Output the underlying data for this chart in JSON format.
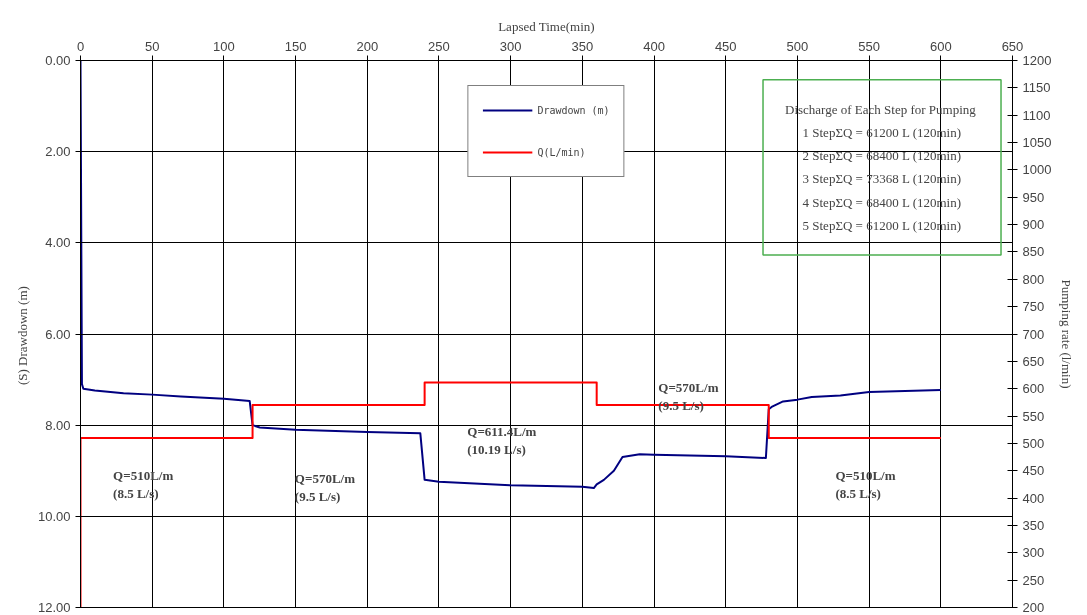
{
  "chart_data": {
    "type": "line",
    "xlabel": "Lapsed Time(min)",
    "ylabel": "(S) Drawdown  (m)",
    "y2label": "Pumping rate (l/min)",
    "xlim": [
      0,
      650
    ],
    "xticks": [
      0,
      50,
      100,
      150,
      200,
      250,
      300,
      350,
      400,
      450,
      500,
      550,
      600,
      650
    ],
    "ylim": [
      12,
      0
    ],
    "yticks": [
      {
        "value": 0,
        "label": "0.00"
      },
      {
        "value": 2,
        "label": "2.00"
      },
      {
        "value": 4,
        "label": "4.00"
      },
      {
        "value": 6,
        "label": "6.00"
      },
      {
        "value": 8,
        "label": "8.00"
      },
      {
        "value": 10,
        "label": "10.00"
      },
      {
        "value": 12,
        "label": "12.00"
      }
    ],
    "y2lim": [
      200,
      1200
    ],
    "y2ticks": [
      200,
      250,
      300,
      350,
      400,
      450,
      500,
      550,
      600,
      650,
      700,
      750,
      800,
      850,
      900,
      950,
      1000,
      1050,
      1100,
      1150,
      1200
    ],
    "grid": true,
    "legend": "top",
    "line_style": "solid",
    "marker": "none",
    "series": [
      {
        "name": "Drawdown (m)",
        "color": "#000080",
        "x": [
          0,
          1,
          2,
          10,
          30,
          50,
          70,
          100,
          118,
          120,
          125,
          150,
          200,
          237,
          240,
          250,
          300,
          350,
          358,
          360,
          365,
          372,
          378,
          390,
          400,
          450,
          478,
          480,
          482,
          490,
          500,
          510,
          530,
          550,
          575,
          600
        ],
        "values": [
          0,
          7.1,
          7.2,
          7.24,
          7.3,
          7.33,
          7.37,
          7.42,
          7.47,
          8.0,
          8.05,
          8.1,
          8.15,
          8.18,
          9.2,
          9.24,
          9.32,
          9.35,
          9.38,
          9.3,
          9.2,
          9.0,
          8.7,
          8.64,
          8.65,
          8.68,
          8.72,
          7.65,
          7.6,
          7.48,
          7.44,
          7.38,
          7.35,
          7.27,
          7.25,
          7.23
        ]
      },
      {
        "name": "Q(L/min)",
        "color": "#ff0000",
        "axis": "y2",
        "x": [
          0,
          0,
          120,
          120,
          240,
          240,
          360,
          360,
          480,
          480,
          600
        ],
        "values": [
          200,
          510,
          510,
          570,
          570,
          611.4,
          611.4,
          570,
          570,
          510,
          510
        ]
      }
    ],
    "annotations": [
      "Discharge  of Each Step for Pumping\n1 StepΣQ = 61200 L (120min)\n2 StepΣQ = 68400 L (120min)\n3 StepΣQ = 73368 L (120min)\n4 StepΣQ = 68400 L (120min)\n5 StepΣQ = 61200 L (120min)",
      "Q=510L/m\n(8.5 L/s)",
      "Q=570L/m\n(9.5 L/s)",
      "Q=611.4L/m\n(10.19 L/s)",
      "Q=570L/m\n(9.5 L/s)",
      "Q=510L/m\n(8.5 L/s)"
    ]
  }
}
